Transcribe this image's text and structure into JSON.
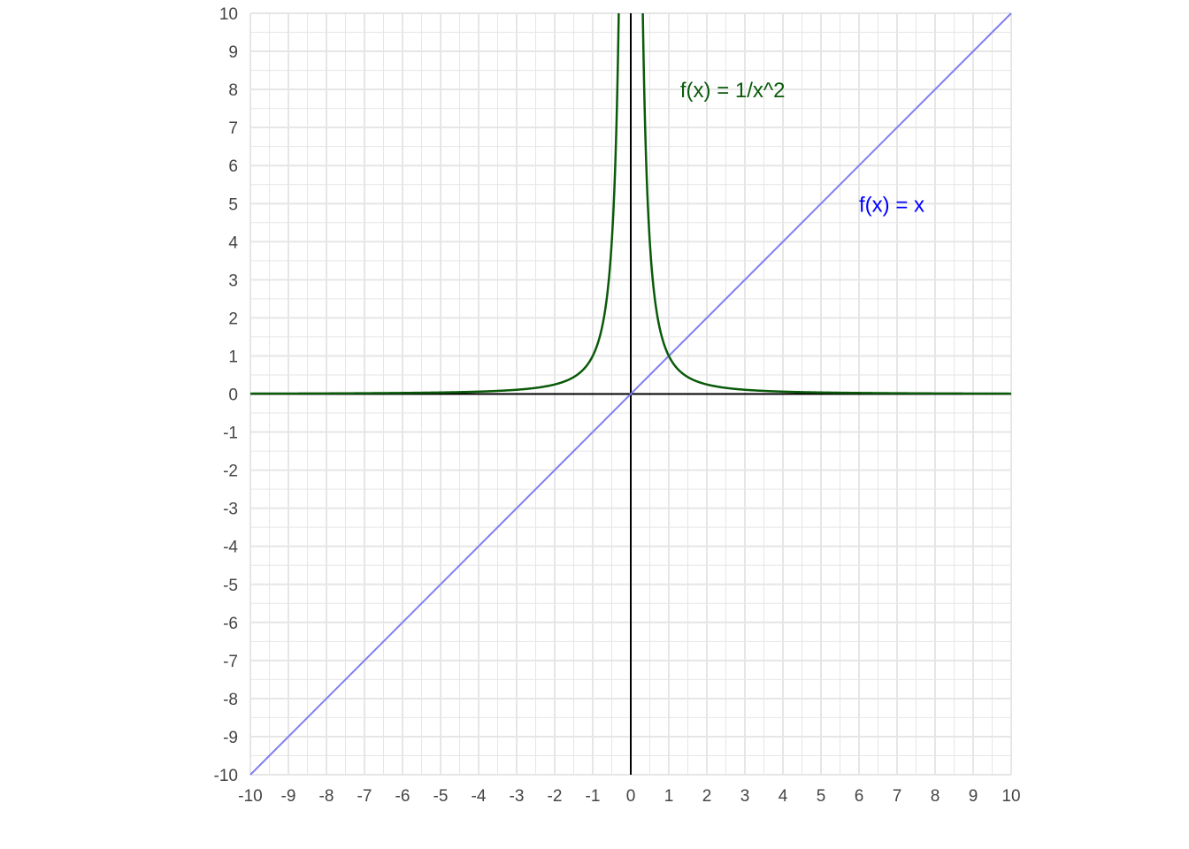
{
  "chart_data": {
    "type": "line",
    "title": "",
    "xlabel": "",
    "ylabel": "",
    "xlim": [
      -10,
      10
    ],
    "ylim": [
      -10,
      10
    ],
    "grid": true,
    "minor_grid_step": 0.5,
    "xticks": [
      "-10",
      "-9",
      "-8",
      "-7",
      "-6",
      "-5",
      "-4",
      "-3",
      "-2",
      "-1",
      "0",
      "1",
      "2",
      "3",
      "4",
      "5",
      "6",
      "7",
      "8",
      "9",
      "10"
    ],
    "yticks": [
      "-10",
      "-9",
      "-8",
      "-7",
      "-6",
      "-5",
      "-4",
      "-3",
      "-2",
      "-1",
      "0",
      "1",
      "2",
      "3",
      "4",
      "5",
      "6",
      "7",
      "8",
      "9",
      "10"
    ],
    "axes_color": "#000000",
    "grid_color": "#e6e6e6",
    "series": [
      {
        "expression": "x",
        "color": "#8080f0",
        "x": [
          -10,
          10
        ],
        "y": [
          -10,
          10
        ]
      },
      {
        "expression": "1/x^2",
        "color": "#0a5a0a",
        "x": [
          -10,
          -5,
          -3,
          -2,
          -1.5,
          -1,
          -0.75,
          -0.5,
          -0.4,
          -0.32,
          0.32,
          0.4,
          0.5,
          0.75,
          1,
          1.5,
          2,
          3,
          5,
          10
        ],
        "y": [
          0.01,
          0.04,
          0.111,
          0.25,
          0.444,
          1,
          1.778,
          4,
          6.25,
          9.77,
          9.77,
          6.25,
          4,
          1.778,
          1,
          0.444,
          0.25,
          0.111,
          0.04,
          0.01
        ]
      }
    ],
    "annotations": [
      {
        "text": "f(x) = 1/x^2",
        "x": 1.3,
        "y": 8,
        "color": "#0a5a0a"
      },
      {
        "text": "f(x) = x",
        "x": 6,
        "y": 5,
        "color": "#0000ff"
      }
    ]
  }
}
